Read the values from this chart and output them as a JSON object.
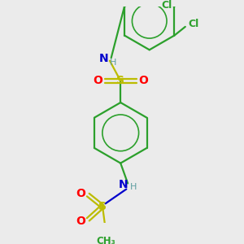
{
  "background_color": "#ebebeb",
  "C": "#2ca02c",
  "N": "#0000cc",
  "O": "#ff0000",
  "S": "#bcbc00",
  "Cl": "#2ca02c",
  "H": "#5f9ea0",
  "bond_color": "#2ca02c",
  "lw": 1.6
}
